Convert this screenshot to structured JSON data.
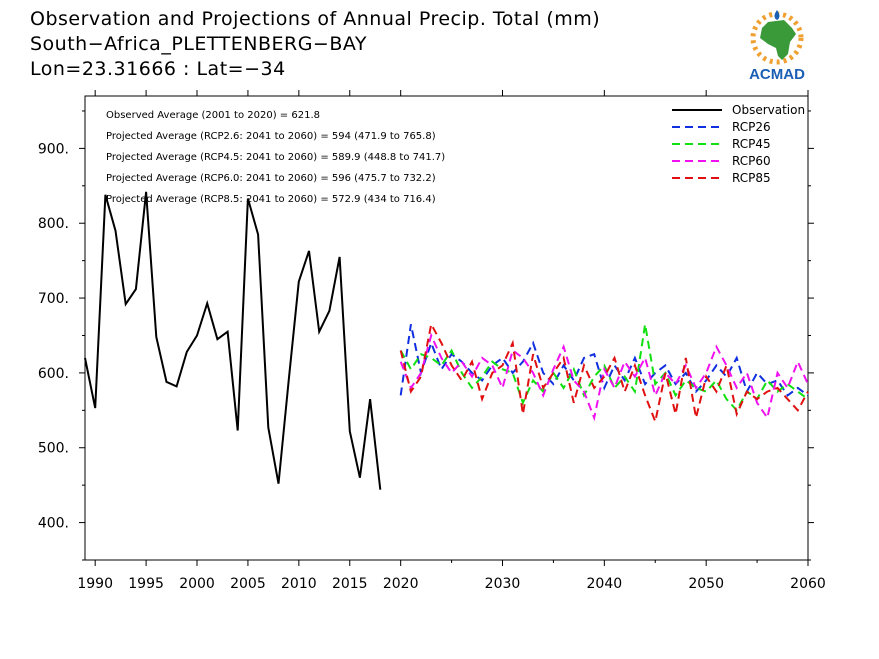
{
  "header": {
    "title": "Observation and Projections of Annual Precip. Total (mm)",
    "location": "South−Africa_PLETTENBERG−BAY",
    "coords": "Lon=23.31666 : Lat=−34"
  },
  "logo": {
    "text": "ACMAD",
    "icon": "africa-sun-logo",
    "colors": {
      "sun": "#f0a030",
      "land": "#3a9a3a",
      "text": "#1a5fb4",
      "drop": "#1a5fb4"
    }
  },
  "stats": [
    "Observed Average (2001 to 2020) = 621.8",
    "Projected Average (RCP2.6: 2041 to 2060) = 594 (471.9 to 765.8)",
    "Projected Average (RCP4.5: 2041 to 2060) = 589.9 (448.8 to 741.7)",
    "Projected Average (RCP6.0: 2041 to 2060) = 596 (475.7 to 732.2)",
    "Projected Average (RCP8.5: 2041 to 2060) = 572.9 (434 to 716.4)"
  ],
  "chart_data": {
    "type": "line",
    "xlim": [
      1989,
      2060
    ],
    "ylim": [
      350,
      970
    ],
    "x_ticks": [
      1990,
      1995,
      2000,
      2005,
      2010,
      2015,
      2020,
      2030,
      2040,
      2050,
      2060
    ],
    "y_ticks": [
      400,
      500,
      600,
      700,
      800,
      900
    ],
    "y_tick_labels": [
      "400.",
      "500.",
      "600.",
      "700.",
      "800.",
      "900."
    ],
    "legend_position": "top-right",
    "series": [
      {
        "name": "Observation",
        "color": "#000000",
        "dash": "solid",
        "x": [
          1989,
          1990,
          1991,
          1992,
          1993,
          1994,
          1995,
          1996,
          1997,
          1998,
          1999,
          2000,
          2001,
          2002,
          2003,
          2004,
          2005,
          2006,
          2007,
          2008,
          2009,
          2010,
          2011,
          2012,
          2013,
          2014,
          2015,
          2016,
          2017,
          2018,
          2019
        ],
        "values": [
          620,
          553,
          838,
          790,
          692,
          712,
          842,
          648,
          588,
          582,
          628,
          650,
          693,
          645,
          655,
          523,
          833,
          785,
          527,
          452,
          590,
          722,
          763,
          655,
          683,
          755,
          522,
          460,
          565,
          444,
          null
        ]
      },
      {
        "name": "RCP26",
        "color": "#1030e0",
        "dash": "dashed",
        "x": [
          2020,
          2021,
          2022,
          2023,
          2024,
          2025,
          2026,
          2027,
          2028,
          2029,
          2030,
          2031,
          2032,
          2033,
          2034,
          2035,
          2036,
          2037,
          2038,
          2039,
          2040,
          2041,
          2042,
          2043,
          2044,
          2045,
          2046,
          2047,
          2048,
          2049,
          2050,
          2051,
          2052,
          2053,
          2054,
          2055,
          2056,
          2057,
          2058,
          2059,
          2060
        ],
        "values": [
          570,
          665,
          600,
          640,
          605,
          625,
          615,
          600,
          590,
          610,
          620,
          600,
          615,
          640,
          600,
          585,
          610,
          590,
          620,
          625,
          580,
          610,
          590,
          620,
          585,
          600,
          610,
          585,
          600,
          575,
          590,
          610,
          595,
          620,
          575,
          600,
          585,
          590,
          570,
          580,
          570
        ]
      },
      {
        "name": "RCP45",
        "color": "#10e010",
        "dash": "dashed",
        "x": [
          2020,
          2021,
          2022,
          2023,
          2024,
          2025,
          2026,
          2027,
          2028,
          2029,
          2030,
          2031,
          2032,
          2033,
          2034,
          2035,
          2036,
          2037,
          2038,
          2039,
          2040,
          2041,
          2042,
          2043,
          2044,
          2045,
          2046,
          2047,
          2048,
          2049,
          2050,
          2051,
          2052,
          2053,
          2054,
          2055,
          2056,
          2057,
          2058,
          2059,
          2060
        ],
        "values": [
          630,
          605,
          625,
          620,
          610,
          630,
          600,
          580,
          595,
          615,
          605,
          600,
          560,
          590,
          575,
          600,
          580,
          605,
          570,
          595,
          610,
          580,
          595,
          575,
          665,
          585,
          600,
          570,
          590,
          580,
          575,
          590,
          565,
          550,
          575,
          565,
          590,
          575,
          585,
          575,
          565
        ]
      },
      {
        "name": "RCP60",
        "color": "#f010f0",
        "dash": "dashed",
        "x": [
          2020,
          2021,
          2022,
          2023,
          2024,
          2025,
          2026,
          2027,
          2028,
          2029,
          2030,
          2031,
          2032,
          2033,
          2034,
          2035,
          2036,
          2037,
          2038,
          2039,
          2040,
          2041,
          2042,
          2043,
          2044,
          2045,
          2046,
          2047,
          2048,
          2049,
          2050,
          2051,
          2052,
          2053,
          2054,
          2055,
          2056,
          2057,
          2058,
          2059,
          2060
        ],
        "values": [
          615,
          580,
          600,
          650,
          620,
          600,
          615,
          595,
          620,
          610,
          580,
          630,
          620,
          600,
          570,
          605,
          635,
          590,
          575,
          540,
          605,
          580,
          615,
          595,
          620,
          570,
          600,
          585,
          610,
          580,
          600,
          635,
          610,
          580,
          600,
          560,
          540,
          600,
          580,
          615,
          585
        ]
      },
      {
        "name": "RCP85",
        "color": "#e01010",
        "dash": "dashed",
        "x": [
          2020,
          2021,
          2022,
          2023,
          2024,
          2025,
          2026,
          2027,
          2028,
          2029,
          2030,
          2031,
          2032,
          2033,
          2034,
          2035,
          2036,
          2037,
          2038,
          2039,
          2040,
          2041,
          2042,
          2043,
          2044,
          2045,
          2046,
          2047,
          2048,
          2049,
          2050,
          2051,
          2052,
          2053,
          2054,
          2055,
          2056,
          2057,
          2058,
          2059,
          2060
        ],
        "values": [
          630,
          575,
          595,
          665,
          640,
          610,
          590,
          615,
          565,
          600,
          610,
          640,
          545,
          625,
          580,
          600,
          620,
          560,
          610,
          580,
          595,
          620,
          575,
          610,
          570,
          535,
          600,
          545,
          620,
          540,
          595,
          575,
          610,
          545,
          575,
          565,
          575,
          580,
          565,
          550,
          575
        ]
      }
    ]
  }
}
